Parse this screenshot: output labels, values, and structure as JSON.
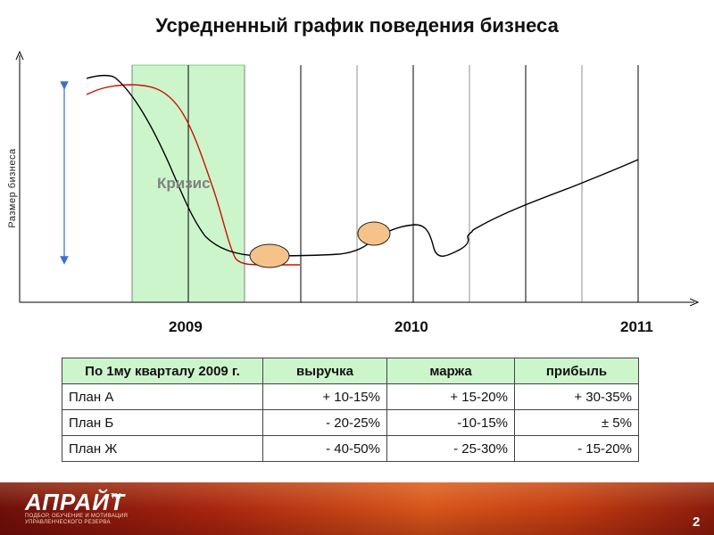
{
  "slide": {
    "title": "Усредненный график поведения бизнеса",
    "page_number": "2"
  },
  "chart": {
    "ylabel": "Размер бизнеса",
    "crisis_label": "Кризис",
    "x_ticks": [
      "2009",
      "2010",
      "2011"
    ]
  },
  "table": {
    "headers": [
      "По 1му кварталу 2009 г.",
      "выручка",
      "маржа",
      "прибыль"
    ],
    "rows": [
      [
        "План А",
        "+ 10-15%",
        "+ 15-20%",
        "+ 30-35%"
      ],
      [
        "План Б",
        "- 20-25%",
        "-10-15%",
        "± 5%"
      ],
      [
        "План Ж",
        "- 40-50%",
        "- 25-30%",
        "- 15-20%"
      ]
    ]
  },
  "footer": {
    "logo": "АПРАЙТ",
    "trademark": "TM",
    "tagline_line1": "ПОДБОР, ОБУЧЕНИЕ И МОТИВАЦИЯ",
    "tagline_line2": "УПРАВЛЕНЧЕСКОГО РЕЗЕРВА"
  },
  "colors": {
    "crisis_band": "#ccf5cc",
    "black_curve": "#000000",
    "red_curve": "#cc1100",
    "marker_fill": "#f5c28a",
    "arrow": "#3a6fd0",
    "header_bg": "#ccf5cc"
  }
}
